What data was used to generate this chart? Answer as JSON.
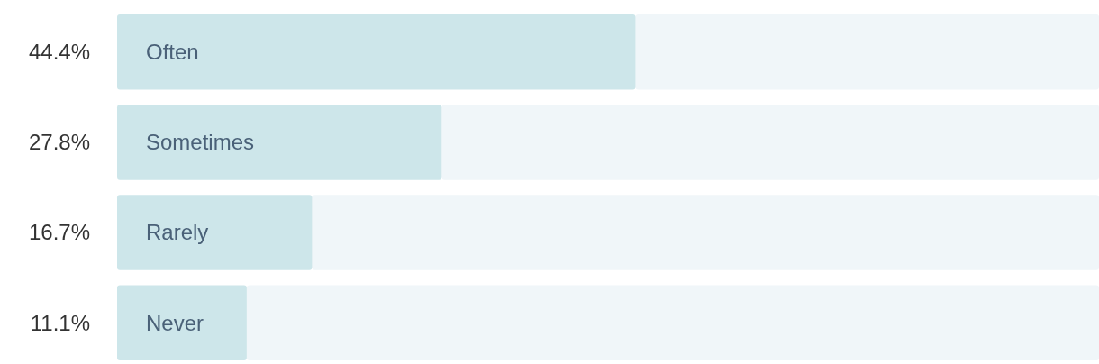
{
  "chart_data": {
    "type": "bar",
    "orientation": "horizontal",
    "categories": [
      "Often",
      "Sometimes",
      "Rarely",
      "Never"
    ],
    "values": [
      44.4,
      27.8,
      16.7,
      11.1
    ],
    "value_labels": [
      "44.4%",
      "27.8%",
      "16.7%",
      "11.1%"
    ],
    "color": "#cde6ea"
  }
}
